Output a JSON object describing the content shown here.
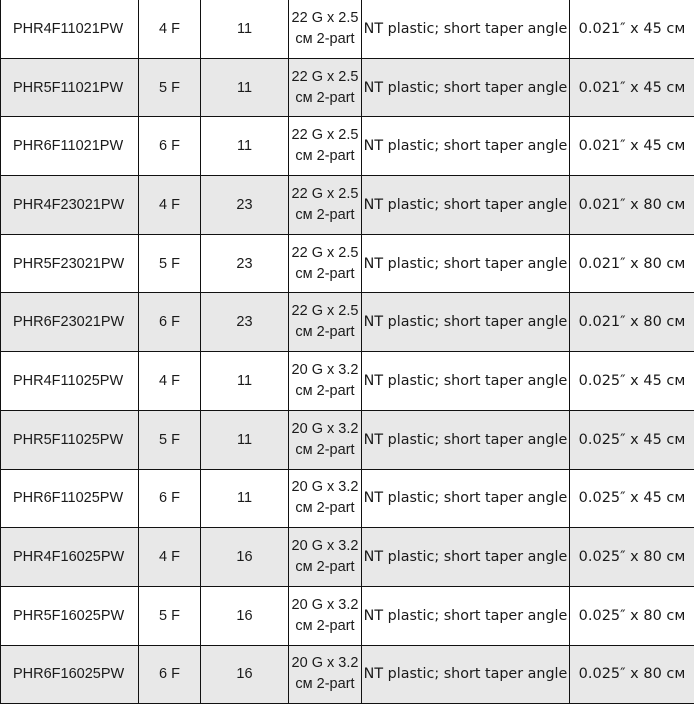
{
  "rows": [
    {
      "part": "PHR4F11021PW",
      "size": "4 F",
      "length": "11",
      "needle_1": "22 G x 2.5",
      "needle_2": "см 2-part",
      "tip": "NT plastic; short taper angle",
      "wire": "0.021″ x 45 см"
    },
    {
      "part": "PHR5F11021PW",
      "size": "5 F",
      "length": "11",
      "needle_1": "22 G x 2.5",
      "needle_2": "см 2-part",
      "tip": "NT plastic; short taper angle",
      "wire": "0.021″ x 45 см"
    },
    {
      "part": "PHR6F11021PW",
      "size": "6 F",
      "length": "11",
      "needle_1": "22 G x 2.5",
      "needle_2": "см 2-part",
      "tip": "NT plastic; short taper angle",
      "wire": "0.021″ x 45 см"
    },
    {
      "part": "PHR4F23021PW",
      "size": "4 F",
      "length": "23",
      "needle_1": "22 G x 2.5",
      "needle_2": "см 2-part",
      "tip": "NT plastic; short taper angle",
      "wire": "0.021″ x 80 см"
    },
    {
      "part": "PHR5F23021PW",
      "size": "5 F",
      "length": "23",
      "needle_1": "22 G x 2.5",
      "needle_2": "см 2-part",
      "tip": "NT plastic; short taper angle",
      "wire": "0.021″ x 80 см"
    },
    {
      "part": "PHR6F23021PW",
      "size": "6 F",
      "length": "23",
      "needle_1": "22 G x 2.5",
      "needle_2": "см 2-part",
      "tip": "NT plastic; short taper angle",
      "wire": "0.021″ x 80 см"
    },
    {
      "part": "PHR4F11025PW",
      "size": "4 F",
      "length": "11",
      "needle_1": "20 G x 3.2",
      "needle_2": "см 2-part",
      "tip": "NT plastic; short taper angle",
      "wire": "0.025″ x 45 см"
    },
    {
      "part": "PHR5F11025PW",
      "size": "5 F",
      "length": "11",
      "needle_1": "20 G x 3.2",
      "needle_2": "см 2-part",
      "tip": "NT plastic; short taper angle",
      "wire": "0.025″ x 45 см"
    },
    {
      "part": "PHR6F11025PW",
      "size": "6 F",
      "length": "11",
      "needle_1": "20 G x 3.2",
      "needle_2": "см 2-part",
      "tip": "NT plastic; short taper angle",
      "wire": "0.025″ x 45 см"
    },
    {
      "part": "PHR4F16025PW",
      "size": "4 F",
      "length": "16",
      "needle_1": "20 G x 3.2",
      "needle_2": "см 2-part",
      "tip": "NT plastic; short taper angle",
      "wire": "0.025″ x 80 см"
    },
    {
      "part": "PHR5F16025PW",
      "size": "5 F",
      "length": "16",
      "needle_1": "20 G x 3.2",
      "needle_2": "см 2-part",
      "tip": "NT plastic; short taper angle",
      "wire": "0.025″ x 80 см"
    },
    {
      "part": "PHR6F16025PW",
      "size": "6 F",
      "length": "16",
      "needle_1": "20 G x 3.2",
      "needle_2": "см 2-part",
      "tip": "NT plastic; short taper angle",
      "wire": "0.025″ x 80 см"
    }
  ]
}
